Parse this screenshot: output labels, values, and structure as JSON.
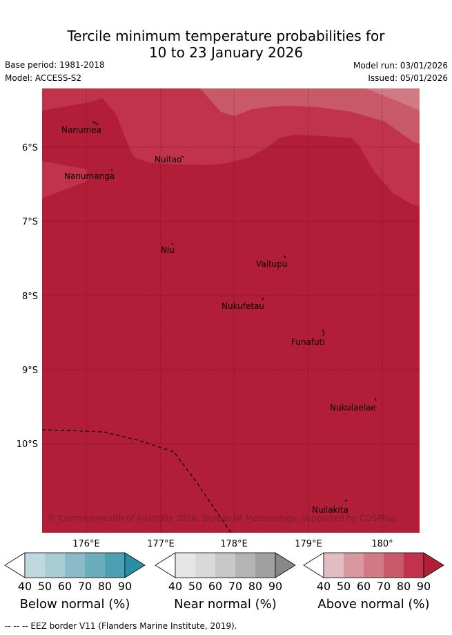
{
  "title": {
    "line1": "Tercile minimum temperature probabilities for",
    "line2": "10 to 23 January 2026"
  },
  "meta": {
    "base_period": "Base period: 1981-2018",
    "model": "Model: ACCESS-S2",
    "model_run": "Model run: 03/01/2026",
    "issued": "Issued: 05/01/2026"
  },
  "map": {
    "lat_labels": [
      "6°S",
      "7°S",
      "8°S",
      "9°S",
      "10°S"
    ],
    "lon_labels": [
      "176°E",
      "177°E",
      "178°E",
      "179°E",
      "180°"
    ],
    "places": [
      "Nanumea",
      "Nuitao",
      "Nanumanga",
      "Niu",
      "Vaitupu",
      "Nukufetau",
      "Funafuti",
      "Nukulaelae",
      "Nuilakita"
    ],
    "copyright": "© Commonwealth of Australia 2026, Bureau of Meteorology, supported by COSPPac",
    "colors": {
      "above_90": "#b21e37",
      "above_80": "#c0334a",
      "above_70": "#c85a67",
      "above_60": "#d27a83"
    }
  },
  "colorbars": [
    {
      "label": "Below normal (%)",
      "ticks": [
        "40",
        "50",
        "60",
        "70",
        "80",
        "90"
      ],
      "colors": [
        "#ffffff",
        "#c0d8de",
        "#a9cbd2",
        "#8bbbc6",
        "#6aaebd",
        "#4ba0b3",
        "#2a8fa5"
      ]
    },
    {
      "label": "Near normal (%)",
      "ticks": [
        "40",
        "50",
        "60",
        "70",
        "80",
        "90"
      ],
      "colors": [
        "#ffffff",
        "#e6e6e6",
        "#d9d9d9",
        "#c8c8c8",
        "#b4b4b4",
        "#a0a0a0",
        "#888888"
      ]
    },
    {
      "label": "Above normal (%)",
      "ticks": [
        "40",
        "50",
        "60",
        "70",
        "80",
        "90"
      ],
      "colors": [
        "#ffffff",
        "#e3bcc2",
        "#d9979f",
        "#d27a83",
        "#c85a67",
        "#c0334a",
        "#b21e37"
      ]
    }
  ],
  "footer": "--  --  -- EEZ border V11 (Flanders Marine Institute, 2019)."
}
